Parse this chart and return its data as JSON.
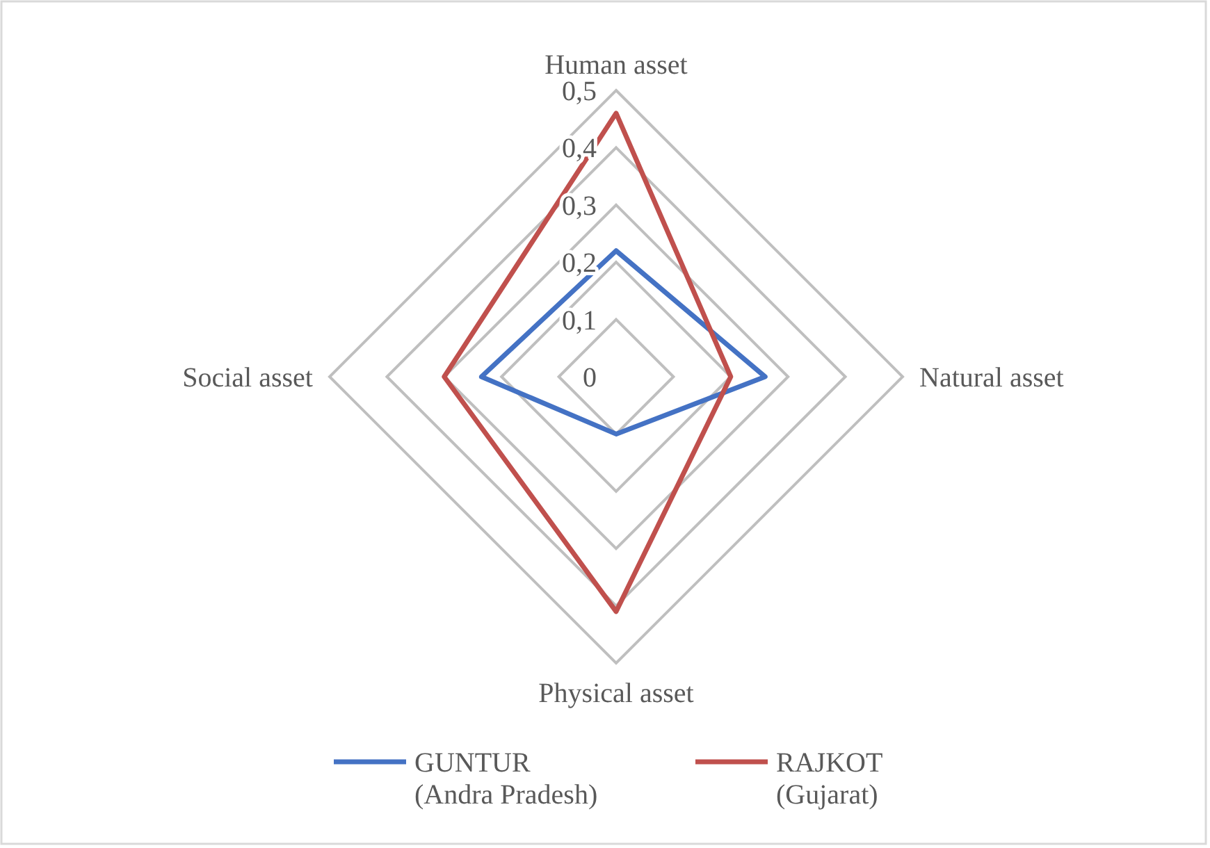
{
  "chart_data": {
    "type": "radar",
    "categories": [
      "Human asset",
      "Natural asset",
      "Physical asset",
      "Social asset"
    ],
    "series": [
      {
        "name": "GUNTUR\n(Andra Pradesh)",
        "color": "#4472c4",
        "values": [
          0.22,
          0.26,
          0.1,
          0.235
        ]
      },
      {
        "name": "RAJKOT\n(Gujarat)",
        "color": "#c0504d",
        "values": [
          0.46,
          0.2,
          0.41,
          0.3
        ]
      }
    ],
    "ylim": [
      0,
      0.5
    ],
    "yticks": [
      0,
      {
        "value": 0.1,
        "label": "0,1"
      },
      {
        "value": 0.2,
        "label": "0,2"
      },
      {
        "value": 0.3,
        "label": "0,3"
      },
      {
        "value": 0.4,
        "label": "0,4"
      },
      {
        "value": 0.5,
        "label": "0,5"
      }
    ],
    "grid": true,
    "legend": "bottom"
  }
}
